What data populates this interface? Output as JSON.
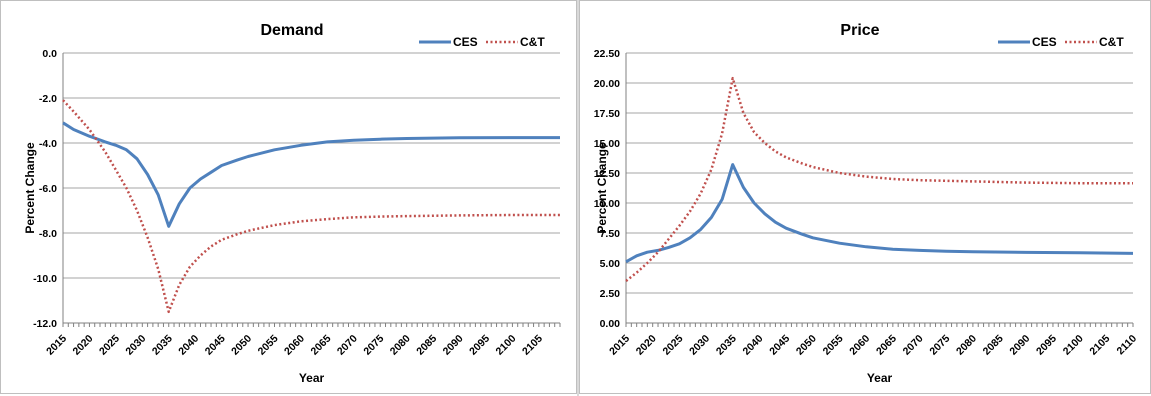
{
  "colors": {
    "ces": "#4f81bd",
    "ct": "#c0504d",
    "grid": "#a6a6a6",
    "axis": "#808080"
  },
  "chart_data": [
    {
      "type": "line",
      "title": "Demand",
      "xlabel": "Year",
      "ylabel": "Percent Change",
      "ylim": [
        -12,
        0
      ],
      "yticks": [
        "0.0",
        "-2.0",
        "-4.0",
        "-6.0",
        "-8.0",
        "-10.0",
        "-12.0"
      ],
      "ytick_values": [
        0,
        -2,
        -4,
        -6,
        -8,
        -10,
        -12
      ],
      "xlim": [
        2015,
        2109
      ],
      "xticks": [
        "2015",
        "2020",
        "2025",
        "2030",
        "2035",
        "2040",
        "2045",
        "2050",
        "2055",
        "2060",
        "2065",
        "2070",
        "2075",
        "2080",
        "2085",
        "2090",
        "2095",
        "2100",
        "2105"
      ],
      "grid": true,
      "legend_position": "top-right",
      "series": [
        {
          "name": "CES",
          "style": "solid",
          "points": [
            [
              2015,
              -3.1
            ],
            [
              2017,
              -3.4
            ],
            [
              2020,
              -3.7
            ],
            [
              2023,
              -3.95
            ],
            [
              2025,
              -4.1
            ],
            [
              2027,
              -4.3
            ],
            [
              2029,
              -4.7
            ],
            [
              2031,
              -5.4
            ],
            [
              2033,
              -6.3
            ],
            [
              2035,
              -7.7
            ],
            [
              2037,
              -6.7
            ],
            [
              2039,
              -6.0
            ],
            [
              2041,
              -5.6
            ],
            [
              2043,
              -5.3
            ],
            [
              2045,
              -5.0
            ],
            [
              2048,
              -4.75
            ],
            [
              2050,
              -4.6
            ],
            [
              2055,
              -4.3
            ],
            [
              2060,
              -4.1
            ],
            [
              2065,
              -3.95
            ],
            [
              2070,
              -3.88
            ],
            [
              2075,
              -3.83
            ],
            [
              2080,
              -3.8
            ],
            [
              2090,
              -3.77
            ],
            [
              2100,
              -3.76
            ],
            [
              2109,
              -3.76
            ]
          ]
        },
        {
          "name": "C&T",
          "style": "dotted",
          "points": [
            [
              2015,
              -2.1
            ],
            [
              2017,
              -2.6
            ],
            [
              2020,
              -3.4
            ],
            [
              2023,
              -4.4
            ],
            [
              2025,
              -5.2
            ],
            [
              2027,
              -6.0
            ],
            [
              2029,
              -7.0
            ],
            [
              2031,
              -8.2
            ],
            [
              2033,
              -9.6
            ],
            [
              2035,
              -11.5
            ],
            [
              2037,
              -10.3
            ],
            [
              2039,
              -9.5
            ],
            [
              2041,
              -9.0
            ],
            [
              2043,
              -8.6
            ],
            [
              2045,
              -8.3
            ],
            [
              2048,
              -8.05
            ],
            [
              2050,
              -7.9
            ],
            [
              2055,
              -7.65
            ],
            [
              2060,
              -7.48
            ],
            [
              2065,
              -7.38
            ],
            [
              2070,
              -7.3
            ],
            [
              2075,
              -7.27
            ],
            [
              2080,
              -7.25
            ],
            [
              2090,
              -7.22
            ],
            [
              2100,
              -7.2
            ],
            [
              2109,
              -7.2
            ]
          ]
        }
      ]
    },
    {
      "type": "line",
      "title": "Price",
      "xlabel": "Year",
      "ylabel": "Percent Change",
      "ylim": [
        0,
        22.5
      ],
      "yticks": [
        "0.00",
        "2.50",
        "5.00",
        "7.50",
        "10.00",
        "12.50",
        "15.00",
        "17.50",
        "20.00",
        "22.50"
      ],
      "ytick_values": [
        0,
        2.5,
        5,
        7.5,
        10,
        12.5,
        15,
        17.5,
        20,
        22.5
      ],
      "xlim": [
        2015,
        2110
      ],
      "xticks": [
        "2015",
        "2020",
        "2025",
        "2030",
        "2035",
        "2040",
        "2045",
        "2050",
        "2055",
        "2060",
        "2065",
        "2070",
        "2075",
        "2080",
        "2085",
        "2090",
        "2095",
        "2100",
        "2105",
        "2110"
      ],
      "grid": true,
      "legend_position": "top-right",
      "series": [
        {
          "name": "CES",
          "style": "solid",
          "points": [
            [
              2015,
              5.1
            ],
            [
              2017,
              5.6
            ],
            [
              2019,
              5.9
            ],
            [
              2021,
              6.05
            ],
            [
              2023,
              6.3
            ],
            [
              2025,
              6.6
            ],
            [
              2027,
              7.1
            ],
            [
              2029,
              7.8
            ],
            [
              2031,
              8.8
            ],
            [
              2033,
              10.3
            ],
            [
              2035,
              13.2
            ],
            [
              2037,
              11.3
            ],
            [
              2039,
              10.0
            ],
            [
              2041,
              9.1
            ],
            [
              2043,
              8.4
            ],
            [
              2045,
              7.9
            ],
            [
              2048,
              7.4
            ],
            [
              2050,
              7.1
            ],
            [
              2055,
              6.65
            ],
            [
              2060,
              6.35
            ],
            [
              2065,
              6.15
            ],
            [
              2070,
              6.05
            ],
            [
              2075,
              5.98
            ],
            [
              2080,
              5.93
            ],
            [
              2090,
              5.88
            ],
            [
              2100,
              5.85
            ],
            [
              2110,
              5.8
            ]
          ]
        },
        {
          "name": "C&T",
          "style": "dotted",
          "points": [
            [
              2015,
              3.5
            ],
            [
              2017,
              4.2
            ],
            [
              2019,
              5.0
            ],
            [
              2021,
              5.9
            ],
            [
              2023,
              7.0
            ],
            [
              2025,
              8.1
            ],
            [
              2027,
              9.3
            ],
            [
              2029,
              10.8
            ],
            [
              2031,
              12.8
            ],
            [
              2033,
              15.8
            ],
            [
              2035,
              20.4
            ],
            [
              2037,
              17.5
            ],
            [
              2039,
              15.9
            ],
            [
              2041,
              15.0
            ],
            [
              2043,
              14.3
            ],
            [
              2045,
              13.8
            ],
            [
              2048,
              13.3
            ],
            [
              2050,
              13.0
            ],
            [
              2055,
              12.5
            ],
            [
              2060,
              12.2
            ],
            [
              2065,
              12.0
            ],
            [
              2070,
              11.9
            ],
            [
              2075,
              11.85
            ],
            [
              2080,
              11.8
            ],
            [
              2090,
              11.7
            ],
            [
              2100,
              11.65
            ],
            [
              2110,
              11.65
            ]
          ]
        }
      ]
    }
  ]
}
